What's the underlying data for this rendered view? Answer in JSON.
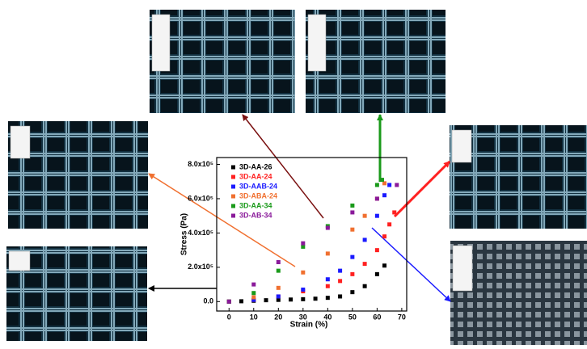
{
  "chart_data": {
    "type": "scatter",
    "xlabel": "Strain (%)",
    "ylabel": "Stress (Pa)",
    "xlim": [
      -5,
      72
    ],
    "ylim": [
      -55000,
      840000
    ],
    "xticks": [
      0,
      10,
      20,
      30,
      40,
      50,
      60,
      70
    ],
    "yticks": [
      {
        "value": 0,
        "label": "0.0"
      },
      {
        "value": 200000,
        "label": "2.0x10⁵"
      },
      {
        "value": 400000,
        "label": "4.0x10⁵"
      },
      {
        "value": 600000,
        "label": "6.0x10⁵"
      },
      {
        "value": 800000,
        "label": "8.0x10⁵"
      }
    ],
    "legend": "upper left",
    "series": [
      {
        "name": "3D-AA-26",
        "color": "#000000",
        "x": [
          0,
          5,
          10,
          15,
          20,
          25,
          30,
          35,
          40,
          45,
          50,
          55,
          60,
          63
        ],
        "values": [
          0,
          2000,
          5000,
          8000,
          10000,
          12000,
          14000,
          17000,
          22000,
          30000,
          55000,
          90000,
          160000,
          210000
        ]
      },
      {
        "name": "3D-AA-24",
        "color": "#ff2020",
        "x": [
          0,
          10,
          20,
          30,
          40,
          45,
          50,
          55,
          60,
          63,
          65,
          67
        ],
        "values": [
          0,
          10000,
          30000,
          60000,
          90000,
          120000,
          160000,
          220000,
          300000,
          380000,
          450000,
          520000
        ]
      },
      {
        "name": "3D-AAB-24",
        "color": "#1a1aff",
        "x": [
          0,
          10,
          20,
          30,
          40,
          45,
          50,
          55,
          60,
          63,
          65
        ],
        "values": [
          0,
          10000,
          30000,
          70000,
          130000,
          180000,
          260000,
          360000,
          500000,
          620000,
          680000
        ]
      },
      {
        "name": "3D-ABA-24",
        "color": "#f07030",
        "x": [
          0,
          10,
          20,
          30,
          40,
          50,
          55,
          60,
          63
        ],
        "values": [
          0,
          25000,
          80000,
          170000,
          280000,
          420000,
          500000,
          600000,
          690000
        ]
      },
      {
        "name": "3D-AA-34",
        "color": "#1a9a1a",
        "x": [
          0,
          10,
          20,
          30,
          40,
          50,
          60,
          62
        ],
        "values": [
          0,
          50000,
          180000,
          320000,
          440000,
          560000,
          680000,
          710000
        ]
      },
      {
        "name": "3D-AB-34",
        "color": "#8a1a9a",
        "x": [
          0,
          10,
          20,
          30,
          40,
          50,
          60,
          68
        ],
        "values": [
          0,
          100000,
          230000,
          340000,
          430000,
          520000,
          600000,
          680000
        ]
      }
    ]
  }
}
